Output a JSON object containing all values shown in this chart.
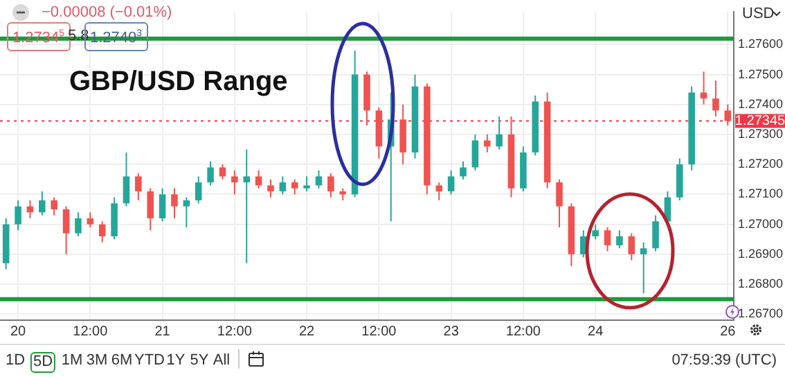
{
  "chart_data": {
    "type": "candlestick",
    "title": "GBP/USD Range",
    "categories": [
      null,
      "20",
      null,
      null,
      null,
      null,
      null,
      "12:00",
      null,
      null,
      null,
      null,
      null,
      "21",
      null,
      null,
      null,
      null,
      null,
      "12:00",
      null,
      null,
      null,
      null,
      null,
      "22",
      null,
      null,
      null,
      null,
      null,
      "12:00",
      null,
      null,
      null,
      null,
      null,
      "23",
      null,
      null,
      null,
      null,
      null,
      "12:00",
      null,
      null,
      null,
      null,
      null,
      "24",
      null,
      null,
      null,
      null,
      null,
      null,
      null,
      null,
      null,
      null,
      "26"
    ],
    "ohlc": [
      [
        1.2687,
        1.2702,
        1.2685,
        1.27
      ],
      [
        1.27,
        1.2708,
        1.2698,
        1.2706
      ],
      [
        1.2706,
        1.2708,
        1.2702,
        1.2704
      ],
      [
        1.2704,
        1.2711,
        1.2703,
        1.2708
      ],
      [
        1.2708,
        1.2709,
        1.2703,
        1.2705
      ],
      [
        1.2705,
        1.2706,
        1.269,
        1.2697
      ],
      [
        1.2697,
        1.2704,
        1.2696,
        1.2702
      ],
      [
        1.2702,
        1.2704,
        1.2699,
        1.27
      ],
      [
        1.27,
        1.2701,
        1.2694,
        1.2696
      ],
      [
        1.2696,
        1.2709,
        1.2695,
        1.2707
      ],
      [
        1.2707,
        1.2724,
        1.2706,
        1.2716
      ],
      [
        1.2716,
        1.2717,
        1.2708,
        1.2711
      ],
      [
        1.2711,
        1.2712,
        1.2698,
        1.2702
      ],
      [
        1.2702,
        1.2712,
        1.2701,
        1.271
      ],
      [
        1.271,
        1.2712,
        1.2702,
        1.2706
      ],
      [
        1.2706,
        1.2709,
        1.2699,
        1.2708
      ],
      [
        1.2708,
        1.2716,
        1.2707,
        1.2714
      ],
      [
        1.2714,
        1.2721,
        1.2713,
        1.2719
      ],
      [
        1.2719,
        1.272,
        1.2715,
        1.2716
      ],
      [
        1.2716,
        1.2718,
        1.271,
        1.2714
      ],
      [
        1.2714,
        1.2725,
        1.2687,
        1.2716
      ],
      [
        1.2716,
        1.2718,
        1.2712,
        1.2713
      ],
      [
        1.2713,
        1.2715,
        1.2709,
        1.2711
      ],
      [
        1.2711,
        1.2716,
        1.271,
        1.2714
      ],
      [
        1.2714,
        1.2715,
        1.271,
        1.2712
      ],
      [
        1.2712,
        1.2716,
        1.2711,
        1.2713
      ],
      [
        1.2713,
        1.2718,
        1.2712,
        1.2716
      ],
      [
        1.2716,
        1.2717,
        1.2709,
        1.2711
      ],
      [
        1.2711,
        1.2712,
        1.2708,
        1.271
      ],
      [
        1.271,
        1.2758,
        1.2709,
        1.275
      ],
      [
        1.275,
        1.2751,
        1.2733,
        1.2738
      ],
      [
        1.2738,
        1.2739,
        1.2722,
        1.2726
      ],
      [
        1.2726,
        1.2744,
        1.2701,
        1.2735
      ],
      [
        1.2735,
        1.274,
        1.272,
        1.2724
      ],
      [
        1.2724,
        1.275,
        1.2722,
        1.2746
      ],
      [
        1.2746,
        1.2747,
        1.271,
        1.2713
      ],
      [
        1.2713,
        1.2714,
        1.2708,
        1.2711
      ],
      [
        1.2711,
        1.2718,
        1.271,
        1.2716
      ],
      [
        1.2716,
        1.2721,
        1.2715,
        1.2719
      ],
      [
        1.2719,
        1.273,
        1.2718,
        1.2728
      ],
      [
        1.2728,
        1.273,
        1.2724,
        1.2726
      ],
      [
        1.2726,
        1.2736,
        1.2725,
        1.273
      ],
      [
        1.273,
        1.2736,
        1.2709,
        1.2712
      ],
      [
        1.2712,
        1.2726,
        1.2711,
        1.2724
      ],
      [
        1.2724,
        1.2743,
        1.2723,
        1.2741
      ],
      [
        1.2741,
        1.2744,
        1.2712,
        1.2714
      ],
      [
        1.2714,
        1.2715,
        1.2699,
        1.2706
      ],
      [
        1.2706,
        1.2707,
        1.2686,
        1.269
      ],
      [
        1.269,
        1.2698,
        1.2689,
        1.2696
      ],
      [
        1.2696,
        1.27,
        1.2695,
        1.2698
      ],
      [
        1.2698,
        1.2699,
        1.2691,
        1.2693
      ],
      [
        1.2693,
        1.2698,
        1.2692,
        1.2696
      ],
      [
        1.2696,
        1.2697,
        1.2688,
        1.269
      ],
      [
        1.269,
        1.2694,
        1.2677,
        1.2692
      ],
      [
        1.2692,
        1.2703,
        1.2691,
        1.2701
      ],
      [
        1.2701,
        1.2711,
        1.27,
        1.2709
      ],
      [
        1.2709,
        1.2722,
        1.2708,
        1.272
      ],
      [
        1.272,
        1.2746,
        1.2718,
        1.2744
      ],
      [
        1.2744,
        1.2751,
        1.274,
        1.2742
      ],
      [
        1.2742,
        1.2748,
        1.2736,
        1.2738
      ],
      [
        1.2738,
        1.274,
        1.2733,
        1.27345
      ]
    ],
    "colors": [
      "#26a69a",
      "#26a69a",
      "#ef5350",
      "#26a69a",
      "#ef5350",
      "#ef5350",
      "#26a69a",
      "#ef5350",
      "#ef5350",
      "#26a69a",
      "#26a69a",
      "#ef5350",
      "#ef5350",
      "#26a69a",
      "#ef5350",
      "#26a69a",
      "#26a69a",
      "#26a69a",
      "#ef5350",
      "#ef5350",
      "#26a69a",
      "#ef5350",
      "#ef5350",
      "#26a69a",
      "#ef5350",
      "#26a69a",
      "#26a69a",
      "#ef5350",
      "#ef5350",
      "#26a69a",
      "#ef5350",
      "#ef5350",
      "#26a69a",
      "#ef5350",
      "#26a69a",
      "#ef5350",
      "#ef5350",
      "#26a69a",
      "#26a69a",
      "#26a69a",
      "#ef5350",
      "#26a69a",
      "#ef5350",
      "#26a69a",
      "#26a69a",
      "#ef5350",
      "#ef5350",
      "#ef5350",
      "#26a69a",
      "#26a69a",
      "#ef5350",
      "#26a69a",
      "#ef5350",
      "#26a69a",
      "#26a69a",
      "#26a69a",
      "#26a69a",
      "#26a69a",
      "#ef5350",
      "#ef5350",
      "#ef5350"
    ],
    "ylim": [
      1.2668,
      1.2771
    ],
    "yticks": [
      {
        "value": 1.267,
        "label": "1.26700"
      },
      {
        "value": 1.268,
        "label": "1.26800"
      },
      {
        "value": 1.269,
        "label": "1.26900"
      },
      {
        "value": 1.27,
        "label": "1.27000"
      },
      {
        "value": 1.271,
        "label": "1.27100"
      },
      {
        "value": 1.272,
        "label": "1.27200"
      },
      {
        "value": 1.273,
        "label": "1.27300"
      },
      {
        "value": 1.274,
        "label": "1.27400"
      },
      {
        "value": 1.275,
        "label": "1.27500"
      },
      {
        "value": 1.276,
        "label": "1.27600"
      }
    ],
    "grid": true,
    "ref_lines": [
      {
        "axis": "y",
        "value": 1.2762,
        "color": "#1e9a3c"
      },
      {
        "axis": "y",
        "value": 1.2675,
        "color": "#1e9a3c"
      },
      {
        "axis": "y",
        "value": 1.27345,
        "label": "1.27345",
        "color": "#f23645",
        "line_style": "dotted"
      }
    ],
    "annotations": [
      "−0.00008 (−0.01%)",
      "1.2734$^{5}$",
      "5.8",
      "1.2740$^{3}$",
      "USD",
      "1D",
      "5D",
      "1M",
      "3M",
      "6M",
      "YTD",
      "1Y",
      "5Y",
      "All",
      "07:59:39 (UTC)"
    ]
  }
}
